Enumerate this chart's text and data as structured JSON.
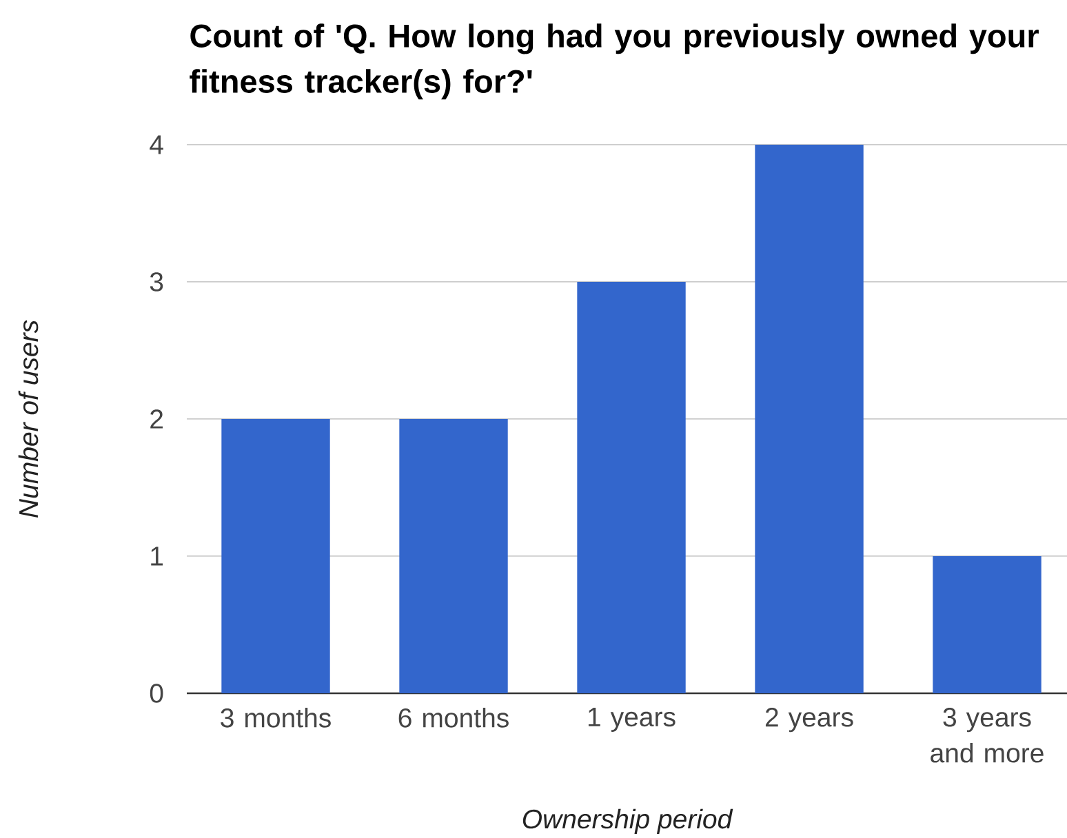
{
  "chart_data": {
    "type": "bar",
    "title": "Count of 'Q. How long had you previously owned your fitness tracker(s) for?'",
    "xlabel": "Ownership period",
    "ylabel": "Number of users",
    "categories": [
      "3 months",
      "6 months",
      "1 years",
      "2 years",
      "3 years and more"
    ],
    "values": [
      2,
      2,
      3,
      4,
      1
    ],
    "color": "#3366cc",
    "ylim": [
      0,
      4
    ],
    "yticks": [
      0,
      1,
      2,
      3,
      4
    ],
    "grid": "y"
  }
}
